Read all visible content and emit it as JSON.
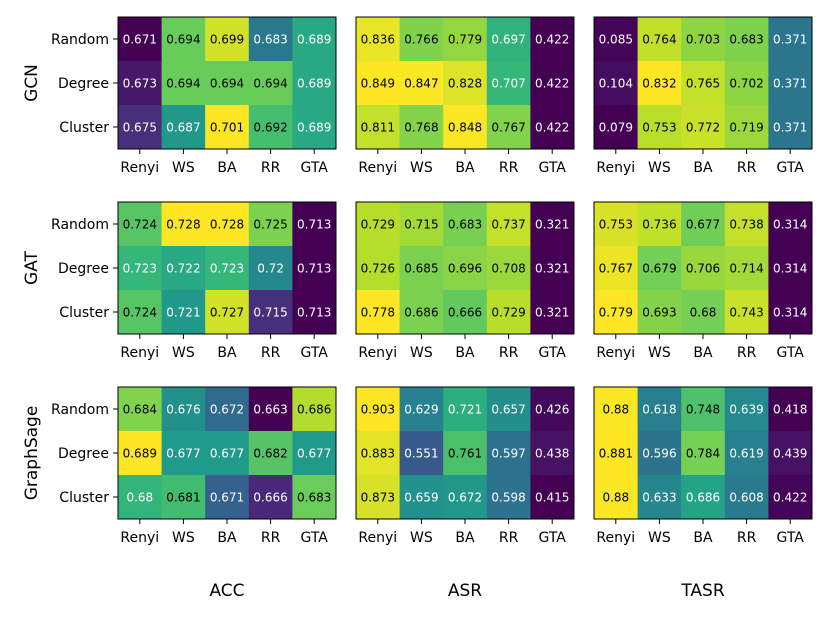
{
  "colors": {
    "colormap": [
      "#440154",
      "#482878",
      "#3e4989",
      "#31688e",
      "#26828e",
      "#1f9e89",
      "#35b779",
      "#6ece58",
      "#b5de2b",
      "#fde725"
    ],
    "frame": "#000000",
    "text_dark": "#000000",
    "text_light": "#ffffff"
  },
  "chart_data": {
    "type": "heatmap",
    "x_tick_labels": [
      "Renyi",
      "WS",
      "BA",
      "RR",
      "GTA"
    ],
    "y_tick_labels": [
      "Random",
      "Degree",
      "Cluster"
    ],
    "row_group_labels": [
      "GCN",
      "GAT",
      "GraphSage"
    ],
    "column_group_labels": [
      "ACC",
      "ASR",
      "TASR"
    ],
    "panels": [
      {
        "row": "GCN",
        "metric": "ACC",
        "values": [
          [
            "0.671",
            "0.694",
            "0.699",
            "0.683",
            "0.689"
          ],
          [
            "0.673",
            "0.694",
            "0.694",
            "0.694",
            "0.689"
          ],
          [
            "0.675",
            "0.687",
            "0.701",
            "0.692",
            "0.689"
          ]
        ]
      },
      {
        "row": "GCN",
        "metric": "ASR",
        "values": [
          [
            "0.836",
            "0.766",
            "0.779",
            "0.697",
            "0.422"
          ],
          [
            "0.849",
            "0.847",
            "0.828",
            "0.707",
            "0.422"
          ],
          [
            "0.811",
            "0.768",
            "0.848",
            "0.767",
            "0.422"
          ]
        ]
      },
      {
        "row": "GCN",
        "metric": "TASR",
        "values": [
          [
            "0.085",
            "0.764",
            "0.703",
            "0.683",
            "0.371"
          ],
          [
            "0.104",
            "0.832",
            "0.765",
            "0.702",
            "0.371"
          ],
          [
            "0.079",
            "0.753",
            "0.772",
            "0.719",
            "0.371"
          ]
        ]
      },
      {
        "row": "GAT",
        "metric": "ACC",
        "values": [
          [
            "0.724",
            "0.728",
            "0.728",
            "0.725",
            "0.713"
          ],
          [
            "0.723",
            "0.722",
            "0.723",
            "0.72",
            "0.713"
          ],
          [
            "0.724",
            "0.721",
            "0.727",
            "0.715",
            "0.713"
          ]
        ]
      },
      {
        "row": "GAT",
        "metric": "ASR",
        "values": [
          [
            "0.729",
            "0.715",
            "0.683",
            "0.737",
            "0.321"
          ],
          [
            "0.726",
            "0.685",
            "0.696",
            "0.708",
            "0.321"
          ],
          [
            "0.778",
            "0.686",
            "0.666",
            "0.729",
            "0.321"
          ]
        ]
      },
      {
        "row": "GAT",
        "metric": "TASR",
        "values": [
          [
            "0.753",
            "0.736",
            "0.677",
            "0.738",
            "0.314"
          ],
          [
            "0.767",
            "0.679",
            "0.706",
            "0.714",
            "0.314"
          ],
          [
            "0.779",
            "0.693",
            "0.68",
            "0.743",
            "0.314"
          ]
        ]
      },
      {
        "row": "GraphSage",
        "metric": "ACC",
        "values": [
          [
            "0.684",
            "0.676",
            "0.672",
            "0.663",
            "0.686"
          ],
          [
            "0.689",
            "0.677",
            "0.677",
            "0.682",
            "0.677"
          ],
          [
            "0.68",
            "0.681",
            "0.671",
            "0.666",
            "0.683"
          ]
        ]
      },
      {
        "row": "GraphSage",
        "metric": "ASR",
        "values": [
          [
            "0.903",
            "0.629",
            "0.721",
            "0.657",
            "0.426"
          ],
          [
            "0.883",
            "0.551",
            "0.761",
            "0.597",
            "0.438"
          ],
          [
            "0.873",
            "0.659",
            "0.672",
            "0.598",
            "0.415"
          ]
        ]
      },
      {
        "row": "GraphSage",
        "metric": "TASR",
        "values": [
          [
            "0.88",
            "0.618",
            "0.748",
            "0.639",
            "0.418"
          ],
          [
            "0.881",
            "0.596",
            "0.784",
            "0.619",
            "0.439"
          ],
          [
            "0.88",
            "0.633",
            "0.686",
            "0.608",
            "0.422"
          ]
        ]
      }
    ]
  }
}
